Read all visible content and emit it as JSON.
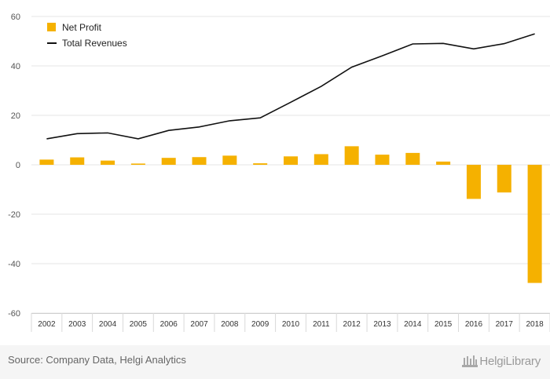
{
  "chart_data": {
    "type": "bar",
    "categories": [
      "2002",
      "2003",
      "2004",
      "2005",
      "2006",
      "2007",
      "2008",
      "2009",
      "2010",
      "2011",
      "2012",
      "2013",
      "2014",
      "2015",
      "2016",
      "2017",
      "2018"
    ],
    "series": [
      {
        "name": "Net Profit",
        "kind": "bar",
        "color": "#f5b100",
        "values": [
          2.1,
          3.0,
          1.7,
          0.5,
          2.8,
          3.1,
          3.7,
          0.6,
          3.4,
          4.3,
          7.5,
          4.1,
          4.8,
          1.3,
          -13.8,
          -11.2,
          -47.8
        ]
      },
      {
        "name": "Total Revenues",
        "kind": "line",
        "color": "#111111",
        "values": [
          10.5,
          12.6,
          12.9,
          10.5,
          13.9,
          15.3,
          17.8,
          19.0,
          25.3,
          31.7,
          39.5,
          44.1,
          48.9,
          49.1,
          46.9,
          49.0,
          53.0
        ]
      }
    ],
    "yticks": [
      60,
      40,
      20,
      0,
      -20,
      -40,
      -60
    ],
    "ylim": [
      -60,
      60
    ],
    "grid": true,
    "legend_position": "top-left"
  },
  "footer": {
    "source": "Source: Company Data, Helgi Analytics",
    "logo_text": "HelgiLibrary"
  }
}
